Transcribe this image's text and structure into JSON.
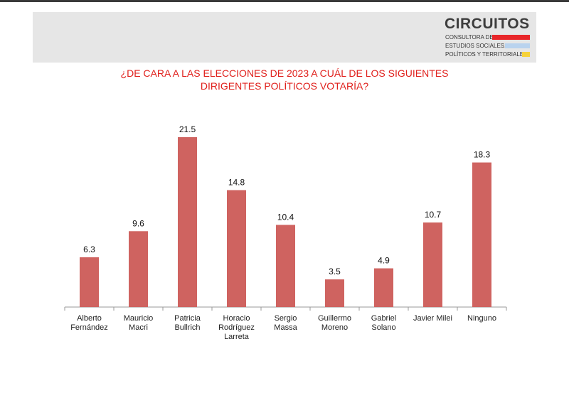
{
  "header": {
    "logo_title": "CIRCUITOS",
    "logo_lines": [
      "CONSULTORA DE",
      "ESTUDIOS SOCIALES,",
      "POLÍTICOS Y TERRITORIALES"
    ],
    "logo_colors": [
      "#e8262a",
      "#b9d3ee",
      "#f6d23a"
    ]
  },
  "chart_data": {
    "type": "bar",
    "title": [
      "¿DE CARA A LAS ELECCIONES DE 2023 A CUÁL DE LOS SIGUIENTES",
      "DIRIGENTES POLÍTICOS VOTARÍA?"
    ],
    "categories": [
      [
        "Alberto",
        "Fernández"
      ],
      [
        "Mauricio",
        "Macri"
      ],
      [
        "Patricia",
        "Bullrich"
      ],
      [
        "Horacio",
        "Rodríguez",
        "Larreta"
      ],
      [
        "Sergio",
        "Massa"
      ],
      [
        "Guillermo",
        "Moreno"
      ],
      [
        "Gabriel",
        "Solano"
      ],
      [
        "Javier Milei"
      ],
      [
        "Ninguno"
      ]
    ],
    "values": [
      6.3,
      9.6,
      21.5,
      14.8,
      10.4,
      3.5,
      4.9,
      10.7,
      18.3
    ],
    "value_labels": [
      "6.3",
      "9.6",
      "21.5",
      "14.8",
      "10.4",
      "3.5",
      "4.9",
      "10.7",
      "18.3"
    ],
    "bar_color": "#cf6360",
    "ylim": [
      0,
      21.5
    ],
    "grid": false,
    "legend": "none",
    "xlabel": "",
    "ylabel": ""
  }
}
